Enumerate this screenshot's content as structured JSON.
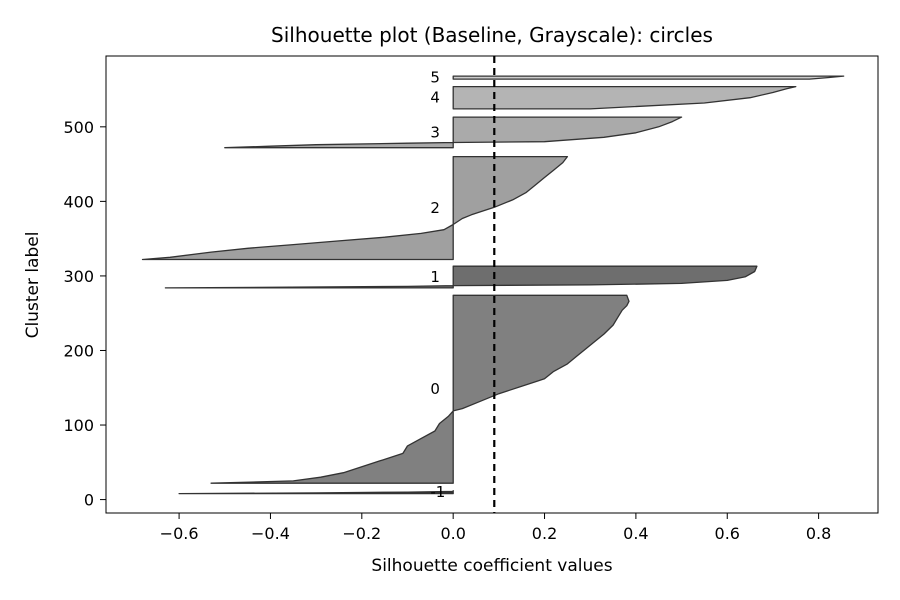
{
  "chart_data": {
    "type": "area",
    "title": "Silhouette plot (Baseline, Grayscale): circles",
    "xlabel": "Silhouette coefficient values",
    "ylabel": "Cluster label",
    "xlim": [
      -0.76,
      0.93
    ],
    "ylim": [
      -18,
      595
    ],
    "xticks": [
      -0.6,
      -0.4,
      -0.2,
      0.0,
      0.2,
      0.4,
      0.6,
      0.8
    ],
    "xtick_labels": [
      "−0.6",
      "−0.4",
      "−0.2",
      "0.0",
      "0.2",
      "0.4",
      "0.6",
      "0.8"
    ],
    "yticks": [
      0,
      100,
      200,
      300,
      400,
      500
    ],
    "ytick_labels": [
      "0",
      "100",
      "200",
      "300",
      "400",
      "500"
    ],
    "grid": false,
    "average_silhouette": 0.09,
    "clusters": [
      {
        "label": "-1",
        "y_lower": 8,
        "y_upper": 12,
        "color": "#333333",
        "values": [
          [
            0,
            -0.6
          ],
          [
            1,
            -0.3
          ],
          [
            2,
            -0.1
          ],
          [
            3,
            0.0
          ],
          [
            4,
            0.0
          ]
        ]
      },
      {
        "label": "0",
        "y_lower": 22,
        "y_upper": 274,
        "color": "#808080",
        "values": [
          [
            0,
            -0.53
          ],
          [
            3,
            -0.35
          ],
          [
            8,
            -0.29
          ],
          [
            14,
            -0.24
          ],
          [
            22,
            -0.2
          ],
          [
            30,
            -0.16
          ],
          [
            40,
            -0.11
          ],
          [
            50,
            -0.1
          ],
          [
            60,
            -0.07
          ],
          [
            70,
            -0.04
          ],
          [
            80,
            -0.03
          ],
          [
            90,
            -0.01
          ],
          [
            97,
            0.0
          ],
          [
            100,
            0.02
          ],
          [
            110,
            0.06
          ],
          [
            120,
            0.1
          ],
          [
            130,
            0.15
          ],
          [
            140,
            0.2
          ],
          [
            150,
            0.22
          ],
          [
            160,
            0.25
          ],
          [
            170,
            0.27
          ],
          [
            180,
            0.29
          ],
          [
            190,
            0.31
          ],
          [
            200,
            0.33
          ],
          [
            212,
            0.35
          ],
          [
            222,
            0.36
          ],
          [
            232,
            0.37
          ],
          [
            238,
            0.38
          ],
          [
            244,
            0.385
          ],
          [
            252,
            0.38
          ]
        ]
      },
      {
        "label": "1",
        "y_lower": 284,
        "y_upper": 313,
        "color": "#6e6e6e",
        "values": [
          [
            0,
            -0.63
          ],
          [
            2,
            -0.1
          ],
          [
            3,
            0.0
          ],
          [
            4,
            0.3
          ],
          [
            6,
            0.5
          ],
          [
            10,
            0.6
          ],
          [
            15,
            0.64
          ],
          [
            22,
            0.66
          ],
          [
            29,
            0.665
          ]
        ]
      },
      {
        "label": "2",
        "y_lower": 322,
        "y_upper": 460,
        "color": "#a0a0a0",
        "values": [
          [
            0,
            -0.68
          ],
          [
            3,
            -0.62
          ],
          [
            10,
            -0.53
          ],
          [
            15,
            -0.45
          ],
          [
            20,
            -0.35
          ],
          [
            25,
            -0.25
          ],
          [
            30,
            -0.15
          ],
          [
            35,
            -0.07
          ],
          [
            40,
            -0.02
          ],
          [
            47,
            0.0
          ],
          [
            55,
            0.02
          ],
          [
            60,
            0.04
          ],
          [
            70,
            0.09
          ],
          [
            80,
            0.13
          ],
          [
            90,
            0.16
          ],
          [
            100,
            0.18
          ],
          [
            110,
            0.2
          ],
          [
            120,
            0.22
          ],
          [
            130,
            0.24
          ],
          [
            138,
            0.25
          ]
        ]
      },
      {
        "label": "3",
        "y_lower": 472,
        "y_upper": 513,
        "color": "#aaaaaa",
        "values": [
          [
            0,
            -0.5
          ],
          [
            2,
            -0.4
          ],
          [
            4,
            -0.3
          ],
          [
            6,
            -0.1
          ],
          [
            7,
            0.0
          ],
          [
            8,
            0.2
          ],
          [
            14,
            0.33
          ],
          [
            20,
            0.4
          ],
          [
            28,
            0.45
          ],
          [
            35,
            0.48
          ],
          [
            41,
            0.5
          ]
        ]
      },
      {
        "label": "4",
        "y_lower": 524,
        "y_upper": 554,
        "color": "#b4b4b4",
        "values": [
          [
            0,
            0.3
          ],
          [
            8,
            0.55
          ],
          [
            15,
            0.65
          ],
          [
            22,
            0.7
          ],
          [
            27,
            0.73
          ],
          [
            30,
            0.75
          ]
        ]
      },
      {
        "label": "5",
        "y_lower": 564,
        "y_upper": 568,
        "color": "#cccccc",
        "values": [
          [
            0,
            0.78
          ],
          [
            2,
            0.82
          ],
          [
            4,
            0.855
          ]
        ]
      }
    ]
  }
}
